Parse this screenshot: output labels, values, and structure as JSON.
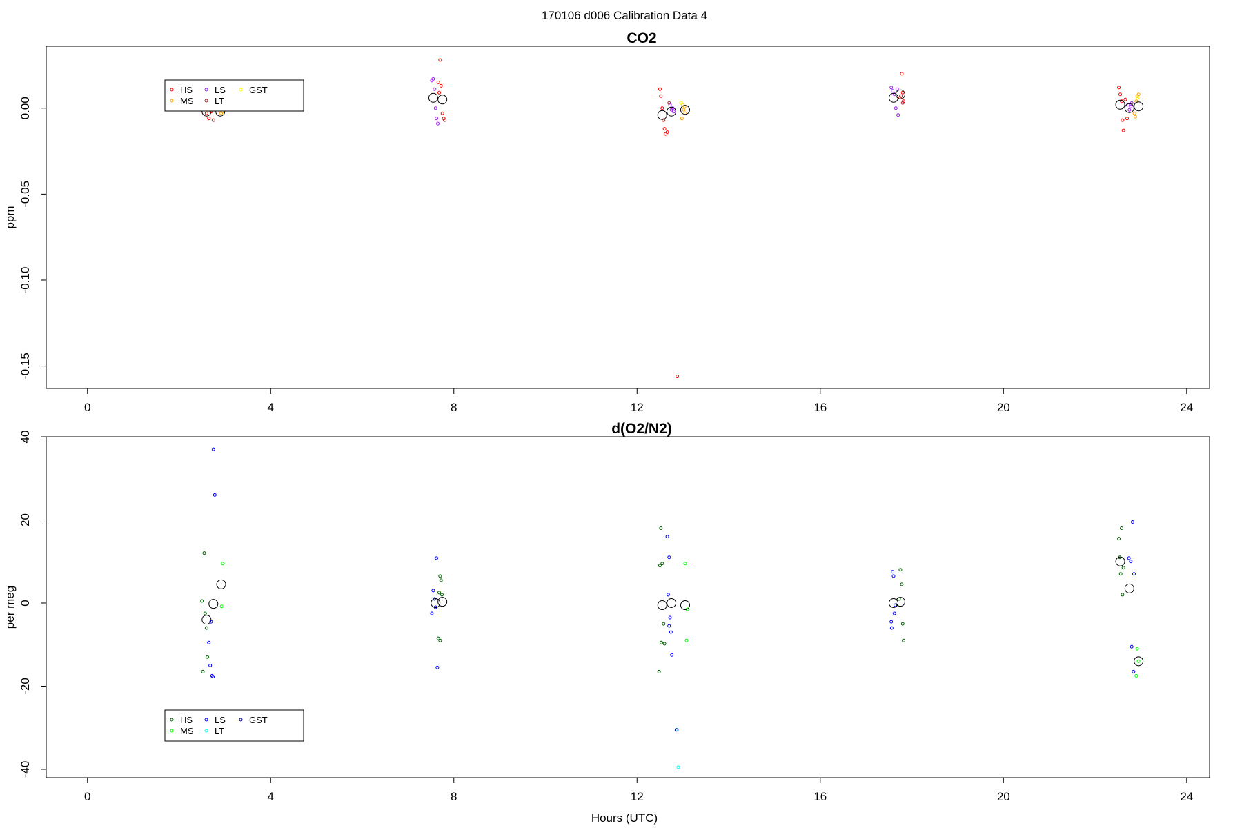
{
  "suptitle": "170106   d006   Calibration Data 4",
  "colors": {
    "red": "#ff0000",
    "orange": "#ffa500",
    "purple": "#a020f0",
    "brown": "#a52a2a",
    "yellow": "#ffff00",
    "green": "#006400",
    "lime": "#00ff00",
    "blue": "#0000ff",
    "cyan": "#00ffff",
    "navy": "#00008b",
    "black": "#000000"
  },
  "chart_data": [
    {
      "type": "scatter",
      "title": "CO2",
      "xlabel": "",
      "ylabel": "ppm",
      "xlim": [
        -0.9,
        24.5
      ],
      "ylim": [
        -0.163,
        0.036
      ],
      "xticks": [
        0,
        4,
        8,
        12,
        16,
        20,
        24
      ],
      "yticks": [
        0.0,
        -0.05,
        -0.1,
        -0.15
      ],
      "ytick_labels": [
        "0.00",
        "-0.05",
        "-0.10",
        "-0.15"
      ],
      "grid": false,
      "legend": {
        "position": "top-left",
        "entries": [
          {
            "label": "HS",
            "color": "red"
          },
          {
            "label": "MS",
            "color": "orange"
          },
          {
            "label": "LS",
            "color": "purple"
          },
          {
            "label": "LT",
            "color": "brown"
          },
          {
            "label": "GST",
            "color": "yellow"
          }
        ]
      },
      "series": [
        {
          "name": "HS",
          "color": "red",
          "points": [
            [
              2.6,
              -0.003
            ],
            [
              2.65,
              -0.006
            ],
            [
              2.7,
              -0.002
            ],
            [
              7.7,
              0.028
            ],
            [
              7.72,
              0.013
            ],
            [
              7.68,
              0.009
            ],
            [
              7.75,
              -0.003
            ],
            [
              7.78,
              -0.006
            ],
            [
              7.66,
              0.015
            ],
            [
              12.5,
              0.011
            ],
            [
              12.52,
              0.007
            ],
            [
              12.55,
              0.0
            ],
            [
              12.58,
              -0.007
            ],
            [
              12.6,
              -0.012
            ],
            [
              12.62,
              -0.015
            ],
            [
              12.66,
              -0.014
            ],
            [
              12.88,
              -0.156
            ],
            [
              17.78,
              0.02
            ],
            [
              17.8,
              0.009
            ],
            [
              17.82,
              0.004
            ],
            [
              17.74,
              0.006
            ],
            [
              22.52,
              0.012
            ],
            [
              22.55,
              0.008
            ],
            [
              22.58,
              0.004
            ],
            [
              22.6,
              -0.007
            ],
            [
              22.62,
              -0.013
            ],
            [
              22.66,
              0.005
            ],
            [
              22.7,
              -0.006
            ]
          ]
        },
        {
          "name": "MS",
          "color": "orange",
          "points": [
            [
              2.9,
              -0.001
            ],
            [
              2.92,
              -0.003
            ],
            [
              2.95,
              -0.002
            ],
            [
              13.0,
              0.002
            ],
            [
              13.02,
              -0.001
            ],
            [
              13.05,
              -0.003
            ],
            [
              12.98,
              -0.006
            ],
            [
              13.04,
              0.001
            ],
            [
              22.9,
              0.004
            ],
            [
              22.88,
              -0.005
            ],
            [
              22.92,
              0.007
            ],
            [
              22.95,
              0.008
            ],
            [
              22.86,
              -0.003
            ]
          ]
        },
        {
          "name": "LS",
          "color": "purple",
          "points": [
            [
              7.52,
              0.016
            ],
            [
              7.55,
              0.017
            ],
            [
              7.58,
              0.011
            ],
            [
              7.6,
              0.0
            ],
            [
              7.62,
              -0.006
            ],
            [
              7.65,
              -0.009
            ],
            [
              12.72,
              0.002
            ],
            [
              12.75,
              -0.001
            ],
            [
              12.78,
              0.0
            ],
            [
              12.8,
              -0.002
            ],
            [
              17.55,
              0.012
            ],
            [
              17.58,
              0.01
            ],
            [
              17.62,
              0.008
            ],
            [
              17.65,
              0.0
            ],
            [
              17.7,
              -0.004
            ],
            [
              17.68,
              0.011
            ],
            [
              22.72,
              0.002
            ],
            [
              22.75,
              -0.001
            ],
            [
              22.78,
              0.001
            ],
            [
              22.8,
              0.003
            ]
          ]
        },
        {
          "name": "LT",
          "color": "brown",
          "points": [
            [
              2.75,
              -0.007
            ],
            [
              7.8,
              -0.007
            ],
            [
              12.7,
              0.003
            ],
            [
              17.76,
              0.007
            ],
            [
              17.8,
              0.003
            ]
          ]
        },
        {
          "name": "GST",
          "color": "yellow",
          "points": [
            [
              12.96,
              0.003
            ],
            [
              22.93,
              0.006
            ]
          ]
        },
        {
          "name": "",
          "color": "black",
          "marker": "large-circle",
          "points": [
            [
              2.6,
              -0.002
            ],
            [
              2.9,
              -0.002
            ],
            [
              7.55,
              0.006
            ],
            [
              7.75,
              0.005
            ],
            [
              12.55,
              -0.004
            ],
            [
              12.75,
              -0.002
            ],
            [
              13.05,
              -0.001
            ],
            [
              17.6,
              0.006
            ],
            [
              17.75,
              0.008
            ],
            [
              22.55,
              0.002
            ],
            [
              22.75,
              0.0
            ],
            [
              22.95,
              0.001
            ]
          ]
        }
      ]
    },
    {
      "type": "scatter",
      "title": "d(O2/N2)",
      "xlabel": "Hours (UTC)",
      "ylabel": "per meg",
      "xlim": [
        -0.9,
        24.5
      ],
      "ylim": [
        -42,
        40
      ],
      "xticks": [
        0,
        4,
        8,
        12,
        16,
        20,
        24
      ],
      "yticks": [
        40,
        20,
        0,
        -20,
        -40
      ],
      "ytick_labels": [
        "40",
        "20",
        "0",
        "-20",
        "-40"
      ],
      "grid": false,
      "legend": {
        "position": "bottom-left",
        "entries": [
          {
            "label": "HS",
            "color": "green"
          },
          {
            "label": "MS",
            "color": "lime"
          },
          {
            "label": "LS",
            "color": "blue"
          },
          {
            "label": "LT",
            "color": "cyan"
          },
          {
            "label": "GST",
            "color": "navy"
          }
        ]
      },
      "series": [
        {
          "name": "HS",
          "color": "green",
          "points": [
            [
              2.55,
              12.0
            ],
            [
              2.5,
              0.5
            ],
            [
              2.57,
              -2.5
            ],
            [
              2.6,
              -6.0
            ],
            [
              2.62,
              -13.0
            ],
            [
              2.52,
              -16.5
            ],
            [
              7.7,
              6.5
            ],
            [
              7.72,
              5.5
            ],
            [
              7.68,
              2.5
            ],
            [
              7.74,
              2.0
            ],
            [
              7.66,
              -8.5
            ],
            [
              7.7,
              -9.0
            ],
            [
              12.52,
              18.0
            ],
            [
              12.55,
              9.5
            ],
            [
              12.5,
              9.0
            ],
            [
              12.58,
              -5.0
            ],
            [
              12.53,
              -9.5
            ],
            [
              12.6,
              -9.8
            ],
            [
              12.48,
              -16.5
            ],
            [
              17.75,
              8.0
            ],
            [
              17.78,
              4.5
            ],
            [
              17.72,
              1.0
            ],
            [
              17.8,
              -5.0
            ],
            [
              17.82,
              -9.0
            ],
            [
              22.52,
              15.5
            ],
            [
              22.58,
              18.0
            ],
            [
              22.54,
              11.0
            ],
            [
              22.62,
              8.5
            ],
            [
              22.56,
              7.0
            ],
            [
              22.6,
              2.0
            ]
          ]
        },
        {
          "name": "MS",
          "color": "lime",
          "points": [
            [
              2.95,
              9.5
            ],
            [
              2.93,
              -0.8
            ],
            [
              13.05,
              9.5
            ],
            [
              13.1,
              -1.5
            ],
            [
              13.08,
              -9.0
            ],
            [
              22.92,
              -11.0
            ],
            [
              22.95,
              -14.0
            ],
            [
              22.9,
              -17.5
            ]
          ]
        },
        {
          "name": "LS",
          "color": "blue",
          "points": [
            [
              2.75,
              37.0
            ],
            [
              2.78,
              26.0
            ],
            [
              2.7,
              -4.5
            ],
            [
              2.65,
              -9.5
            ],
            [
              2.68,
              -15.0
            ],
            [
              2.72,
              -17.5
            ],
            [
              2.74,
              -17.7
            ],
            [
              7.62,
              10.8
            ],
            [
              7.55,
              3.0
            ],
            [
              7.58,
              1.0
            ],
            [
              7.6,
              -1.0
            ],
            [
              7.52,
              -2.5
            ],
            [
              7.64,
              -15.5
            ],
            [
              12.66,
              16.0
            ],
            [
              12.7,
              11.0
            ],
            [
              12.68,
              2.0
            ],
            [
              12.72,
              -3.5
            ],
            [
              12.7,
              -5.5
            ],
            [
              12.74,
              -7.0
            ],
            [
              12.76,
              -12.5
            ],
            [
              17.58,
              7.5
            ],
            [
              17.6,
              6.5
            ],
            [
              17.64,
              -0.5
            ],
            [
              17.62,
              -2.5
            ],
            [
              17.55,
              -4.5
            ],
            [
              17.56,
              -6.0
            ],
            [
              22.82,
              19.5
            ],
            [
              22.74,
              10.8
            ],
            [
              22.78,
              10.0
            ],
            [
              22.85,
              7.0
            ],
            [
              22.8,
              -10.5
            ],
            [
              22.84,
              -16.5
            ]
          ]
        },
        {
          "name": "LT",
          "color": "cyan",
          "points": [
            [
              12.88,
              -30.5
            ],
            [
              12.9,
              -39.5
            ]
          ]
        },
        {
          "name": "GST",
          "color": "navy",
          "points": [
            [
              12.86,
              -30.5
            ]
          ]
        },
        {
          "name": "",
          "color": "black",
          "marker": "large-circle",
          "points": [
            [
              2.6,
              -4.0
            ],
            [
              2.75,
              -0.2
            ],
            [
              2.92,
              4.5
            ],
            [
              7.6,
              0.0
            ],
            [
              7.75,
              0.3
            ],
            [
              12.55,
              -0.5
            ],
            [
              12.75,
              0.0
            ],
            [
              13.05,
              -0.5
            ],
            [
              17.6,
              0.0
            ],
            [
              17.75,
              0.3
            ],
            [
              22.55,
              10.0
            ],
            [
              22.75,
              3.5
            ],
            [
              22.95,
              -14.0
            ]
          ]
        }
      ]
    }
  ]
}
